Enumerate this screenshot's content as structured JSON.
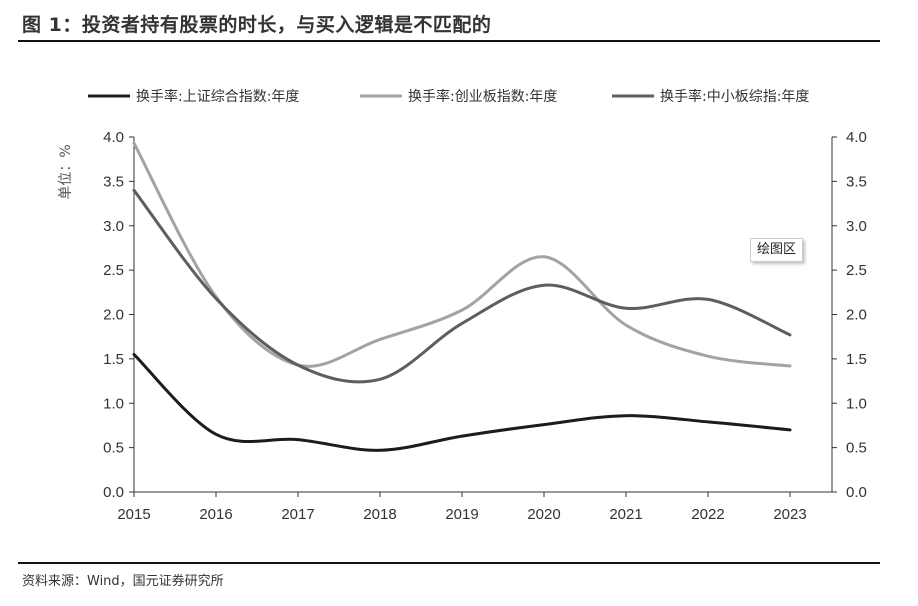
{
  "figure_title": "图 1：投资者持有股票的时长，与买入逻辑是不匹配的",
  "source_note": "资料来源：Wind，国元证券研究所",
  "plot_area_tag": "绘图区",
  "chart_data": {
    "type": "line",
    "title": "",
    "x": [
      "2015",
      "2016",
      "2017",
      "2018",
      "2019",
      "2020",
      "2021",
      "2022",
      "2023"
    ],
    "xlabel": "",
    "ylabel": "单位：%",
    "ylim": [
      0,
      4.0
    ],
    "y_ticks": [
      "0.0",
      "0.5",
      "1.0",
      "1.5",
      "2.0",
      "2.5",
      "3.0",
      "3.5",
      "4.0"
    ],
    "y_right_ticks": [
      "0.0",
      "0.5",
      "1.0",
      "1.5",
      "2.0",
      "2.5",
      "3.0",
      "3.5",
      "4.0"
    ],
    "grid": false,
    "legend_position": "top",
    "series": [
      {
        "name": "换手率:上证综合指数:年度",
        "color": "#1c1c1c",
        "values": [
          1.55,
          0.65,
          0.59,
          0.47,
          0.63,
          0.76,
          0.86,
          0.79,
          0.7
        ]
      },
      {
        "name": "换手率:创业板指数:年度",
        "color": "#a3a3a3",
        "values": [
          3.93,
          2.2,
          1.43,
          1.72,
          2.05,
          2.65,
          1.88,
          1.53,
          1.42
        ]
      },
      {
        "name": "换手率:中小板综指:年度",
        "color": "#5e5e5e",
        "values": [
          3.4,
          2.18,
          1.43,
          1.27,
          1.9,
          2.33,
          2.07,
          2.17,
          1.77
        ]
      }
    ]
  }
}
